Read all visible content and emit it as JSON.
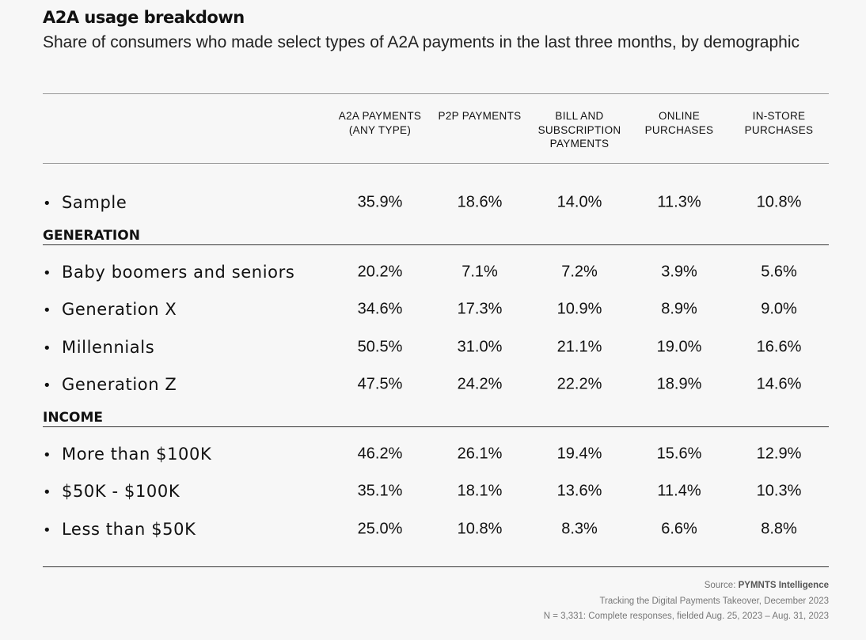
{
  "header": {
    "title": "A2A usage breakdown",
    "subtitle": "Share of consumers who made select types of A2A payments in the last three months, by demographic"
  },
  "table": {
    "columns": [
      "A2A PAYMENTS (ANY TYPE)",
      "P2P PAYMENTS",
      "BILL AND SUBSCRIPTION PAYMENTS",
      "ONLINE PURCHASES",
      "IN-STORE PURCHASES"
    ],
    "sample": {
      "label": "Sample",
      "values": [
        "35.9%",
        "18.6%",
        "14.0%",
        "11.3%",
        "10.8%"
      ]
    },
    "groups": [
      {
        "label": "GENERATION",
        "rows": [
          {
            "label": "Baby boomers and seniors",
            "values": [
              "20.2%",
              "7.1%",
              "7.2%",
              "3.9%",
              "5.6%"
            ]
          },
          {
            "label": "Generation X",
            "values": [
              "34.6%",
              "17.3%",
              "10.9%",
              "8.9%",
              "9.0%"
            ]
          },
          {
            "label": "Millennials",
            "values": [
              "50.5%",
              "31.0%",
              "21.1%",
              "19.0%",
              "16.6%"
            ]
          },
          {
            "label": "Generation Z",
            "values": [
              "47.5%",
              "24.2%",
              "22.2%",
              "18.9%",
              "14.6%"
            ]
          }
        ]
      },
      {
        "label": "INCOME",
        "rows": [
          {
            "label": "More than $100K",
            "values": [
              "46.2%",
              "26.1%",
              "19.4%",
              "15.6%",
              "12.9%"
            ]
          },
          {
            "label": "$50K - $100K",
            "values": [
              "35.1%",
              "18.1%",
              "13.6%",
              "11.4%",
              "10.3%"
            ]
          },
          {
            "label": "Less than $50K",
            "values": [
              "25.0%",
              "10.8%",
              "8.3%",
              "6.6%",
              "8.8%"
            ]
          }
        ]
      }
    ]
  },
  "footer": {
    "source_label": "Source:",
    "source": "PYMNTS Intelligence",
    "lines": [
      "Tracking the Digital Payments Takeover, December 2023",
      "N = 3,331: Complete responses, fielded Aug. 25, 2023 – Aug. 31, 2023"
    ]
  }
}
